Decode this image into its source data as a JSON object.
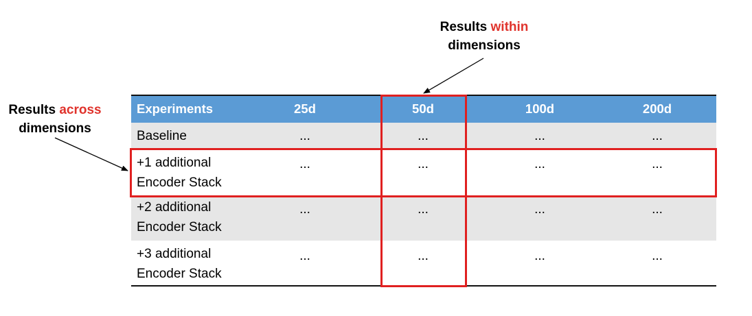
{
  "callouts": {
    "within": {
      "line1_prefix": "Results ",
      "line1_highlight": "within",
      "line2": "dimensions"
    },
    "across": {
      "line1_prefix": "Results ",
      "line1_highlight": "across",
      "line2": "dimensions"
    }
  },
  "table": {
    "columns": [
      "Experiments",
      "25d",
      "50d",
      "100d",
      "200d"
    ],
    "rows": [
      {
        "label_line1": "Baseline",
        "label_line2": "",
        "values": [
          "...",
          "...",
          "...",
          "..."
        ]
      },
      {
        "label_line1": "+1 additional",
        "label_line2": "Encoder Stack",
        "values": [
          "...",
          "...",
          "...",
          "..."
        ]
      },
      {
        "label_line1": "+2 additional",
        "label_line2": "Encoder Stack",
        "values": [
          "...",
          "...",
          "...",
          "..."
        ]
      },
      {
        "label_line1": "+3 additional",
        "label_line2": "Encoder Stack",
        "values": [
          "...",
          "...",
          "...",
          "..."
        ]
      }
    ],
    "highlighted_column": "50d",
    "highlighted_row": "+1 additional Encoder Stack"
  },
  "colors": {
    "header_fill": "#5b9bd5",
    "band_fill": "#e6e6e6",
    "highlight_box": "#e02020",
    "callout_highlight": "#e0332c"
  }
}
